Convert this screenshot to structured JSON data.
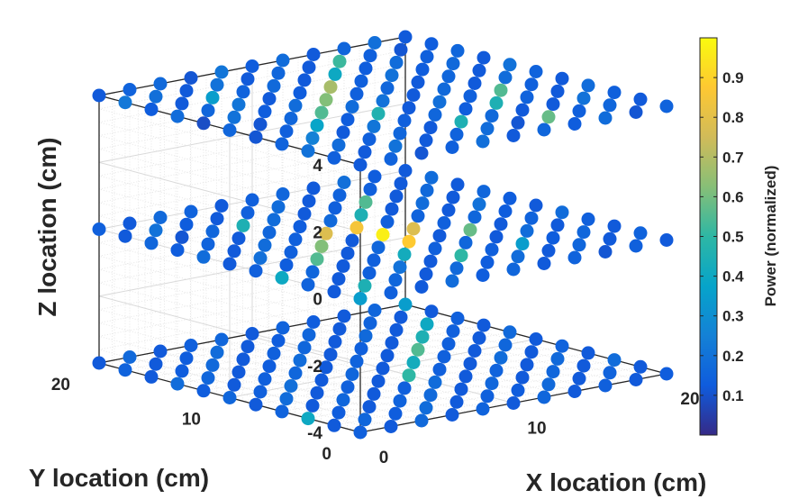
{
  "chart_data": {
    "type": "scatter",
    "projection": "3d",
    "xlabel": "X location (cm)",
    "ylabel": "Y location (cm)",
    "zlabel": "Z location (cm)",
    "xlim": [
      0,
      20
    ],
    "ylim": [
      0,
      20
    ],
    "zlim": [
      -4,
      4
    ],
    "xticks": [
      "0",
      "10",
      "20"
    ],
    "yticks": [
      "0",
      "10",
      "20"
    ],
    "zticks": [
      "-4",
      "-2",
      "0",
      "2",
      "4"
    ],
    "grid": true,
    "colormap": "parula",
    "colorbar": {
      "label": "Power (normalized)",
      "ticks": [
        "0.1",
        "0.2",
        "0.3",
        "0.4",
        "0.5",
        "0.6",
        "0.7",
        "0.8",
        "0.9"
      ],
      "range": [
        0,
        1
      ]
    },
    "series": [
      {
        "z": 4,
        "grid_x": [
          0,
          20
        ],
        "grid_y": [
          0,
          20
        ],
        "n": 11,
        "power": [
          [
            0.12,
            0.14,
            0.2,
            0.15,
            0.11,
            0.16,
            0.09,
            0.18,
            0.13,
            0.22,
            0.12
          ],
          [
            0.15,
            0.12,
            0.18,
            0.25,
            0.14,
            0.11,
            0.2,
            0.16,
            0.12,
            0.19,
            0.15
          ],
          [
            0.11,
            0.2,
            0.14,
            0.12,
            0.38,
            0.16,
            0.13,
            0.21,
            0.35,
            0.12,
            0.17
          ],
          [
            0.14,
            0.12,
            0.16,
            0.21,
            0.13,
            0.55,
            0.18,
            0.12,
            0.15,
            0.2,
            0.11
          ],
          [
            0.19,
            0.15,
            0.12,
            0.14,
            0.46,
            0.18,
            0.62,
            0.13,
            0.17,
            0.12,
            0.21
          ],
          [
            0.12,
            0.18,
            0.45,
            0.16,
            0.12,
            0.2,
            0.14,
            0.68,
            0.12,
            0.16,
            0.13
          ],
          [
            0.16,
            0.11,
            0.17,
            0.13,
            0.19,
            0.12,
            0.16,
            0.14,
            0.4,
            0.12,
            0.18
          ],
          [
            0.13,
            0.58,
            0.12,
            0.45,
            0.14,
            0.17,
            0.12,
            0.2,
            0.13,
            0.52,
            0.12
          ],
          [
            0.18,
            0.14,
            0.12,
            0.15,
            0.55,
            0.12,
            0.16,
            0.13,
            0.18,
            0.14,
            0.16
          ],
          [
            0.11,
            0.16,
            0.2,
            0.12,
            0.14,
            0.18,
            0.12,
            0.17,
            0.14,
            0.11,
            0.19
          ],
          [
            0.15,
            0.12,
            0.14,
            0.18,
            0.12,
            0.15,
            0.2,
            0.12,
            0.16,
            0.13,
            0.12
          ]
        ]
      },
      {
        "z": 0,
        "grid_x": [
          0,
          20
        ],
        "grid_y": [
          0,
          20
        ],
        "n": 11,
        "power": [
          [
            0.35,
            0.12,
            0.15,
            0.4,
            0.14,
            0.12,
            0.18,
            0.13,
            0.16,
            0.12,
            0.14
          ],
          [
            0.14,
            0.45,
            0.12,
            0.16,
            0.13,
            0.19,
            0.12,
            0.15,
            0.11,
            0.2,
            0.12
          ],
          [
            0.12,
            0.16,
            0.14,
            0.12,
            0.55,
            0.14,
            0.18,
            0.12,
            0.16,
            0.13,
            0.17
          ],
          [
            0.18,
            0.12,
            0.2,
            0.14,
            0.12,
            0.62,
            0.14,
            0.16,
            0.45,
            0.12,
            0.15
          ],
          [
            0.13,
            0.17,
            0.12,
            0.42,
            0.16,
            0.12,
            0.78,
            0.13,
            0.18,
            0.14,
            0.12
          ],
          [
            0.16,
            0.13,
            0.5,
            0.14,
            0.88,
            0.97,
            0.85,
            0.17,
            0.12,
            0.18,
            0.14
          ],
          [
            0.12,
            0.18,
            0.14,
            0.16,
            0.12,
            0.78,
            0.14,
            0.45,
            0.14,
            0.12,
            0.16
          ],
          [
            0.15,
            0.12,
            0.35,
            0.12,
            0.58,
            0.14,
            0.15,
            0.12,
            0.55,
            0.15,
            0.12
          ],
          [
            0.11,
            0.16,
            0.13,
            0.18,
            0.12,
            0.16,
            0.12,
            0.18,
            0.12,
            0.14,
            0.19
          ],
          [
            0.14,
            0.12,
            0.16,
            0.12,
            0.15,
            0.13,
            0.2,
            0.12,
            0.17,
            0.12,
            0.13
          ],
          [
            0.12,
            0.15,
            0.12,
            0.14,
            0.18,
            0.12,
            0.13,
            0.16,
            0.12,
            0.18,
            0.12
          ]
        ]
      },
      {
        "z": -4,
        "grid_x": [
          0,
          20
        ],
        "grid_y": [
          0,
          20
        ],
        "n": 11,
        "power": [
          [
            0.14,
            0.12,
            0.4,
            0.15,
            0.12,
            0.16,
            0.13,
            0.18,
            0.12,
            0.15,
            0.12
          ],
          [
            0.12,
            0.16,
            0.13,
            0.12,
            0.18,
            0.14,
            0.12,
            0.16,
            0.13,
            0.12,
            0.17
          ],
          [
            0.17,
            0.13,
            0.12,
            0.16,
            0.12,
            0.19,
            0.14,
            0.12,
            0.17,
            0.13,
            0.12
          ],
          [
            0.12,
            0.18,
            0.15,
            0.12,
            0.14,
            0.12,
            0.16,
            0.13,
            0.12,
            0.18,
            0.14
          ],
          [
            0.15,
            0.12,
            0.17,
            0.14,
            0.12,
            0.16,
            0.12,
            0.18,
            0.14,
            0.12,
            0.16
          ],
          [
            0.12,
            0.14,
            0.12,
            0.18,
            0.5,
            0.12,
            0.15,
            0.12,
            0.16,
            0.13,
            0.12
          ],
          [
            0.16,
            0.13,
            0.16,
            0.12,
            0.14,
            0.42,
            0.12,
            0.14,
            0.12,
            0.16,
            0.15
          ],
          [
            0.12,
            0.17,
            0.12,
            0.15,
            0.12,
            0.14,
            0.55,
            0.12,
            0.17,
            0.12,
            0.13
          ],
          [
            0.14,
            0.12,
            0.16,
            0.12,
            0.18,
            0.12,
            0.14,
            0.45,
            0.12,
            0.15,
            0.12
          ],
          [
            0.12,
            0.15,
            0.12,
            0.17,
            0.12,
            0.16,
            0.12,
            0.14,
            0.4,
            0.12,
            0.16
          ],
          [
            0.13,
            0.12,
            0.18,
            0.12,
            0.15,
            0.12,
            0.17,
            0.12,
            0.14,
            0.12,
            0.35
          ]
        ]
      }
    ]
  }
}
